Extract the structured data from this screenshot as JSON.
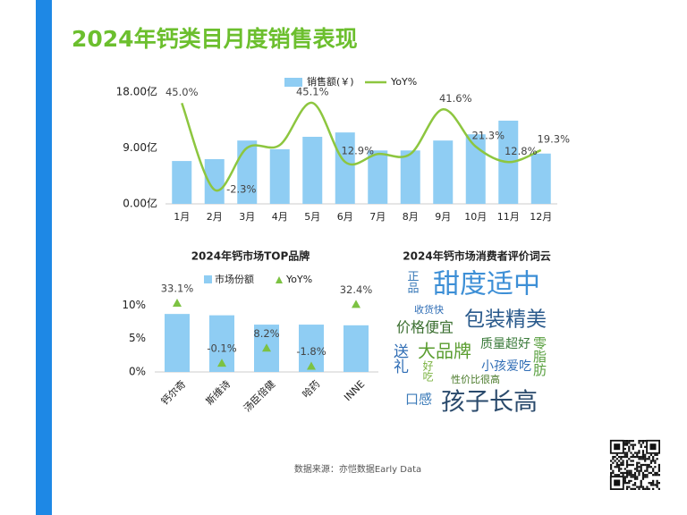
{
  "title": "2024年钙类目月度销售表现",
  "source": "数据来源：亦恺数据Early Data",
  "chart_data": [
    {
      "type": "bar_line",
      "categories": [
        "1月",
        "2月",
        "3月",
        "4月",
        "5月",
        "6月",
        "7月",
        "8月",
        "9月",
        "10月",
        "11月",
        "12月"
      ],
      "series": [
        {
          "name": "销售额(￥)",
          "color": "#8fcdf3",
          "values": [
            6.9,
            7.2,
            10.2,
            8.8,
            10.8,
            11.5,
            8.6,
            8.6,
            10.2,
            11.2,
            13.4,
            8.1
          ]
        },
        {
          "name": "YoY%",
          "color": "#8dc63f",
          "axis": "y2",
          "values": [
            45.0,
            -2.3,
            20.6,
            22.1,
            45.1,
            12.9,
            17.2,
            17.2,
            41.6,
            21.3,
            12.8,
            19.3
          ],
          "value_labels": [
            "45.0%",
            "-2.3%",
            null,
            null,
            "45.1%",
            "12.9%",
            null,
            null,
            "41.6%",
            "21.3%",
            "12.8%",
            "19.3%"
          ]
        }
      ],
      "ylim": [
        0,
        18
      ],
      "yticks": [
        {
          "value": 0,
          "label": "0.00亿"
        },
        {
          "value": 9,
          "label": "9.00亿"
        },
        {
          "value": 18,
          "label": "18.00亿"
        }
      ],
      "y2lim": [
        -10,
        51
      ]
    },
    {
      "type": "bar_marker",
      "title": "2024年钙市场TOP品牌",
      "categories": [
        "钙尔奇",
        "斯维诗",
        "汤臣倍健",
        "哈药",
        "INNE"
      ],
      "series": [
        {
          "name": "市场份额",
          "color": "#8fcdf3",
          "values": [
            8.7,
            8.5,
            7.1,
            7.1,
            7.0
          ]
        },
        {
          "name": "YoY%",
          "color": "#7cc242",
          "axis": "y2",
          "values": [
            33.1,
            -0.1,
            8.2,
            -1.8,
            32.4
          ],
          "value_labels": [
            "33.1%",
            "-0.1%",
            "8.2%",
            "-1.8%",
            "32.4%"
          ]
        }
      ],
      "ylim": [
        0,
        11
      ],
      "yticks": [
        {
          "value": 0,
          "label": "0%"
        },
        {
          "value": 5,
          "label": "5%"
        },
        {
          "value": 10,
          "label": "10%"
        }
      ],
      "y2lim": [
        -5,
        40
      ]
    }
  ],
  "word_cloud": {
    "title": "2024年钙市场消费者评价词云",
    "words": [
      {
        "text": "正品",
        "color": "#3a7ab8"
      },
      {
        "text": "甜度适中",
        "color": "#3d8fd6"
      },
      {
        "text": "收货快",
        "color": "#2f6db5"
      },
      {
        "text": "价格便宜",
        "color": "#3a6e2f"
      },
      {
        "text": "包装精美",
        "color": "#2a5a8c"
      },
      {
        "text": "送礼",
        "color": "#2f6db5"
      },
      {
        "text": "大品牌",
        "color": "#5a9d2f"
      },
      {
        "text": "质量超好",
        "color": "#3a7a3a"
      },
      {
        "text": "零脂肪",
        "color": "#5aa040"
      },
      {
        "text": "好吃",
        "color": "#7cb342"
      },
      {
        "text": "小孩爱吃",
        "color": "#2f6db5"
      },
      {
        "text": "性价比很高",
        "color": "#4a7a2a"
      },
      {
        "text": "口感",
        "color": "#3a7ab8"
      },
      {
        "text": "孩子长高",
        "color": "#2a4a6c"
      }
    ]
  }
}
